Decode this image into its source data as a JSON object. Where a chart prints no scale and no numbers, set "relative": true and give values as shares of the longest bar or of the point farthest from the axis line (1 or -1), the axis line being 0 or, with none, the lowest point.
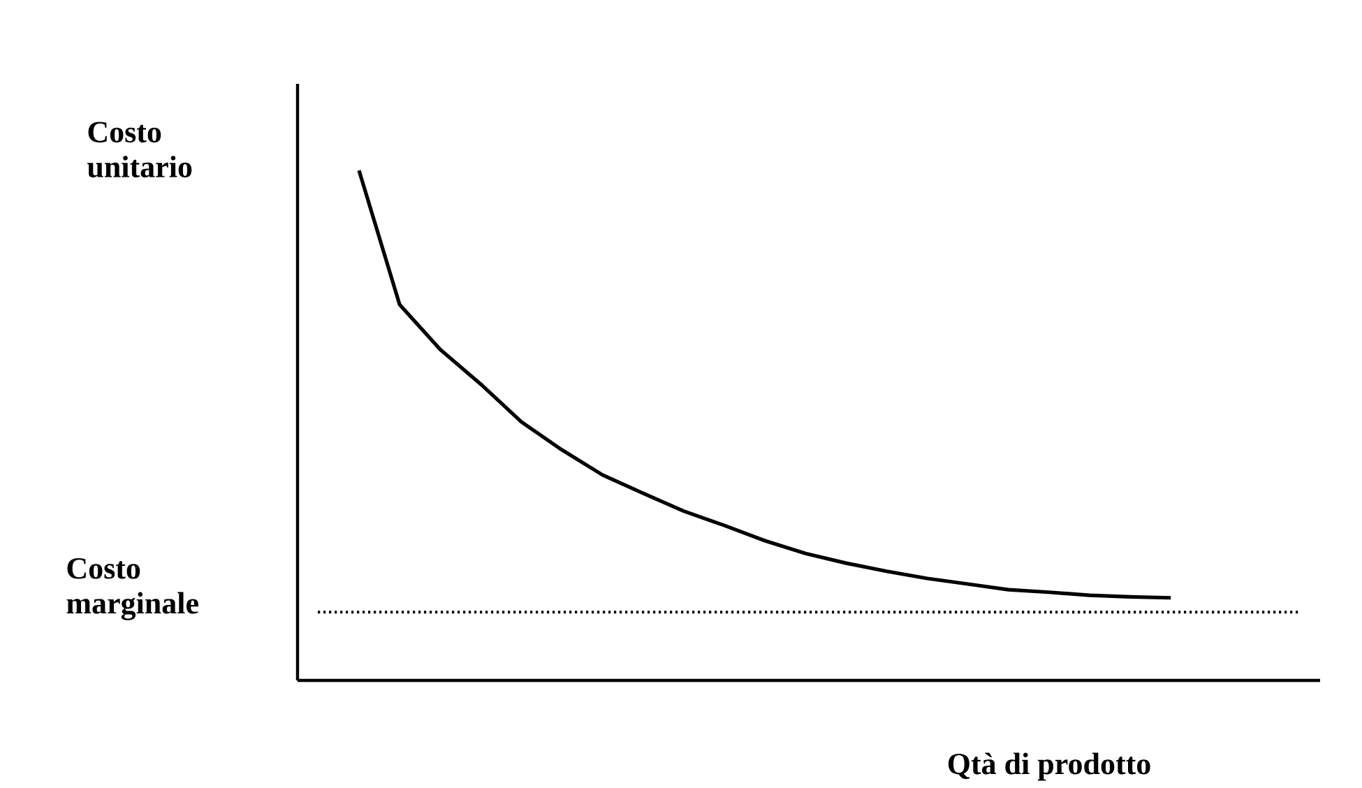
{
  "chart_data": {
    "type": "line",
    "relative": true,
    "ylabel": "Costo unitario",
    "xlabel": "Qtà di prodotto",
    "categories": [
      null,
      null,
      null,
      null,
      null,
      null,
      null,
      null,
      null,
      null,
      null,
      null,
      null,
      null,
      null,
      null,
      null,
      null,
      null,
      null,
      null
    ],
    "values": [
      1.0,
      0.737,
      0.649,
      0.581,
      0.507,
      0.452,
      0.403,
      0.367,
      0.332,
      0.304,
      0.274,
      0.249,
      0.23,
      0.214,
      0.2,
      0.189,
      0.178,
      0.173,
      0.167,
      0.164,
      0.162
    ],
    "color": "#000000",
    "ref_lines": [
      {
        "axis": "y",
        "value": 0.134,
        "label": "Costo marginale",
        "line_style": "dotted",
        "color": "#000000"
      }
    ]
  }
}
